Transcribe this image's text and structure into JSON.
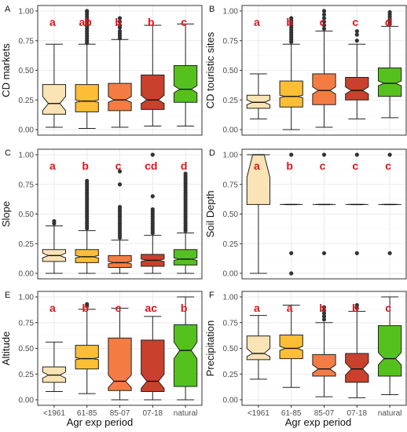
{
  "figure": {
    "xlabel": "Agr exp period",
    "categories": [
      "<1961",
      "61-85",
      "85-07",
      "07-18",
      "natural"
    ],
    "colors": [
      "#FAE3B4",
      "#FBBE35",
      "#F47C43",
      "#C9402C",
      "#55C11E"
    ],
    "letter_color": "#E0141B",
    "panel_border_color": "#333333",
    "grid_color": "#EBEBEB",
    "outlier_color": "#333333"
  },
  "chart_data": [
    {
      "type": "boxplot",
      "panel": "A",
      "ylabel": "CD markets",
      "ylim": [
        0,
        1
      ],
      "yticks": [
        "0.00",
        "0.25",
        "0.50",
        "0.75",
        "1.00"
      ],
      "grid": true,
      "letters": [
        "a",
        "ab",
        "b",
        "b",
        "c"
      ],
      "notched": true,
      "boxes": [
        {
          "whisker_low": 0.02,
          "q1": 0.13,
          "median": 0.22,
          "q3": 0.38,
          "whisker_high": 0.72,
          "notch": [
            0.16,
            0.28
          ],
          "outliers": []
        },
        {
          "whisker_low": 0.01,
          "q1": 0.15,
          "median": 0.24,
          "q3": 0.38,
          "whisker_high": 0.72,
          "notch": [
            0.23,
            0.25
          ],
          "outliers": [
            0.73,
            0.75,
            0.77,
            0.79,
            0.81,
            0.83,
            0.85,
            0.87,
            0.89,
            0.91,
            0.93,
            0.95,
            0.97,
            0.99,
            1.0
          ]
        },
        {
          "whisker_low": 0.02,
          "q1": 0.16,
          "median": 0.25,
          "q3": 0.39,
          "whisker_high": 0.76,
          "notch": [
            0.23,
            0.28
          ],
          "outliers": [
            0.77,
            0.79,
            0.81,
            0.83,
            0.86,
            0.88,
            0.91,
            0.94
          ]
        },
        {
          "whisker_low": 0.03,
          "q1": 0.17,
          "median": 0.25,
          "q3": 0.46,
          "whisker_high": 0.88,
          "notch": [
            0.22,
            0.29
          ],
          "outliers": []
        },
        {
          "whisker_low": 0.03,
          "q1": 0.23,
          "median": 0.34,
          "q3": 0.54,
          "whisker_high": 0.89,
          "notch": [
            0.31,
            0.37
          ],
          "outliers": []
        }
      ]
    },
    {
      "type": "boxplot",
      "panel": "B",
      "ylabel": "CD touristic sites",
      "ylim": [
        0,
        1
      ],
      "yticks": [
        "0.00",
        "0.25",
        "0.50",
        "0.75",
        "1.00"
      ],
      "grid": true,
      "letters": [
        "a",
        "b",
        "c",
        "c",
        "d"
      ],
      "notched": true,
      "boxes": [
        {
          "whisker_low": 0.09,
          "q1": 0.18,
          "median": 0.23,
          "q3": 0.29,
          "whisker_high": 0.47,
          "notch": [
            0.21,
            0.25
          ],
          "outliers": []
        },
        {
          "whisker_low": 0.0,
          "q1": 0.19,
          "median": 0.28,
          "q3": 0.41,
          "whisker_high": 0.72,
          "notch": [
            0.27,
            0.29
          ],
          "outliers": [
            0.74,
            0.76,
            0.78,
            0.8,
            0.82,
            0.84,
            0.86,
            0.88,
            0.9,
            0.92,
            0.94
          ]
        },
        {
          "whisker_low": 0.02,
          "q1": 0.21,
          "median": 0.33,
          "q3": 0.47,
          "whisker_high": 0.83,
          "notch": [
            0.3,
            0.36
          ],
          "outliers": [
            0.85,
            0.88,
            0.91,
            0.94,
            0.97,
            1.0
          ]
        },
        {
          "whisker_low": 0.09,
          "q1": 0.25,
          "median": 0.33,
          "q3": 0.44,
          "whisker_high": 0.72,
          "notch": [
            0.3,
            0.36
          ],
          "outliers": [
            0.75,
            0.8,
            0.83
          ]
        },
        {
          "whisker_low": 0.1,
          "q1": 0.28,
          "median": 0.39,
          "q3": 0.52,
          "whisker_high": 0.87,
          "notch": [
            0.37,
            0.41
          ],
          "outliers": [
            0.89,
            0.91,
            0.93,
            0.95,
            0.97,
            0.99
          ]
        }
      ]
    },
    {
      "type": "boxplot",
      "panel": "C",
      "ylabel": "Slope",
      "ylim": [
        0,
        1
      ],
      "yticks": [
        "0.00",
        "0.25",
        "0.50",
        "0.75",
        "1.00"
      ],
      "grid": true,
      "letters": [
        "a",
        "b",
        "c",
        "cd",
        "d"
      ],
      "notched": true,
      "boxes": [
        {
          "whisker_low": 0.0,
          "q1": 0.1,
          "median": 0.15,
          "q3": 0.2,
          "whisker_high": 0.4,
          "notch": [
            0.13,
            0.17
          ],
          "outliers": [
            0.42,
            0.44
          ]
        },
        {
          "whisker_low": 0.0,
          "q1": 0.09,
          "median": 0.14,
          "q3": 0.2,
          "whisker_high": 0.36,
          "notch": [
            0.13,
            0.15
          ],
          "outliers": [
            0.38,
            0.4,
            0.42,
            0.44,
            0.46,
            0.48,
            0.5,
            0.52,
            0.54,
            0.56,
            0.58,
            0.6,
            0.62,
            0.64,
            0.66,
            0.68,
            0.7,
            0.72,
            0.74,
            0.76,
            0.78
          ]
        },
        {
          "whisker_low": 0.0,
          "q1": 0.05,
          "median": 0.09,
          "q3": 0.15,
          "whisker_high": 0.28,
          "notch": [
            0.08,
            0.1
          ],
          "outliers": [
            0.3,
            0.32,
            0.34,
            0.36,
            0.38,
            0.4,
            0.42,
            0.44,
            0.46,
            0.48,
            0.5,
            0.52,
            0.54,
            0.56,
            0.75,
            0.86
          ]
        },
        {
          "whisker_low": 0.0,
          "q1": 0.06,
          "median": 0.11,
          "q3": 0.16,
          "whisker_high": 0.32,
          "notch": [
            0.1,
            0.12
          ],
          "outliers": [
            0.34,
            0.36,
            0.38,
            0.4,
            0.42,
            0.44,
            0.46,
            0.48,
            0.5,
            0.52,
            0.54,
            0.65,
            1.0
          ]
        },
        {
          "whisker_low": 0.0,
          "q1": 0.07,
          "median": 0.12,
          "q3": 0.2,
          "whisker_high": 0.34,
          "notch": [
            0.11,
            0.13
          ],
          "outliers": [
            0.36,
            0.38,
            0.4,
            0.42,
            0.44,
            0.46,
            0.48,
            0.5,
            0.52,
            0.54,
            0.56,
            0.58,
            0.6,
            0.62,
            0.64,
            0.66,
            0.68,
            0.7,
            0.72,
            0.74,
            0.76,
            0.78,
            0.8,
            0.82,
            0.84
          ]
        }
      ]
    },
    {
      "type": "boxplot",
      "panel": "D",
      "ylabel": "Soil Depth",
      "ylim": [
        0,
        1
      ],
      "yticks": [
        "0.00",
        "0.25",
        "0.50",
        "0.75",
        "1.00"
      ],
      "grid": true,
      "letters": [
        "a",
        "b",
        "c",
        "c",
        "c"
      ],
      "notched": true,
      "boxes": [
        {
          "whisker_low": 0.0,
          "q1": 0.58,
          "median": 1.0,
          "q3": 1.0,
          "whisker_high": 1.0,
          "notch": [
            0.81,
            1.0
          ],
          "outliers": []
        },
        {
          "whisker_low": 0.58,
          "q1": 0.58,
          "median": 0.58,
          "q3": 0.58,
          "whisker_high": 0.58,
          "notch": [
            0.58,
            0.58
          ],
          "outliers": [
            0.0,
            0.17,
            1.0
          ]
        },
        {
          "whisker_low": 0.58,
          "q1": 0.58,
          "median": 0.58,
          "q3": 0.58,
          "whisker_high": 0.58,
          "notch": [
            0.58,
            0.58
          ],
          "outliers": [
            0.17,
            1.0
          ]
        },
        {
          "whisker_low": 0.58,
          "q1": 0.58,
          "median": 0.58,
          "q3": 0.58,
          "whisker_high": 0.58,
          "notch": [
            0.58,
            0.58
          ],
          "outliers": [
            0.17,
            1.0
          ]
        },
        {
          "whisker_low": 0.58,
          "q1": 0.58,
          "median": 0.58,
          "q3": 0.58,
          "whisker_high": 0.58,
          "notch": [
            0.58,
            0.58
          ],
          "outliers": [
            0.17,
            1.0
          ]
        }
      ]
    },
    {
      "type": "boxplot",
      "panel": "E",
      "ylabel": "Altitude",
      "ylim": [
        0,
        1
      ],
      "yticks": [
        "0.00",
        "0.25",
        "0.50",
        "0.75",
        "1.00"
      ],
      "grid": true,
      "letters": [
        "a",
        "b",
        "c",
        "ac",
        "b"
      ],
      "notched": true,
      "boxes": [
        {
          "whisker_low": 0.08,
          "q1": 0.17,
          "median": 0.24,
          "q3": 0.32,
          "whisker_high": 0.56,
          "notch": [
            0.21,
            0.27
          ],
          "outliers": []
        },
        {
          "whisker_low": 0.06,
          "q1": 0.3,
          "median": 0.4,
          "q3": 0.53,
          "whisker_high": 0.88,
          "notch": [
            0.39,
            0.41
          ],
          "outliers": [
            0.91,
            0.93
          ]
        },
        {
          "whisker_low": 0.0,
          "q1": 0.09,
          "median": 0.18,
          "q3": 0.6,
          "whisker_high": 0.89,
          "notch": [
            0.12,
            0.24
          ],
          "outliers": []
        },
        {
          "whisker_low": 0.0,
          "q1": 0.08,
          "median": 0.18,
          "q3": 0.58,
          "whisker_high": 0.81,
          "notch": [
            0.11,
            0.25
          ],
          "outliers": []
        },
        {
          "whisker_low": 0.0,
          "q1": 0.13,
          "median": 0.48,
          "q3": 0.73,
          "whisker_high": 1.0,
          "notch": [
            0.4,
            0.56
          ],
          "outliers": []
        }
      ]
    },
    {
      "type": "boxplot",
      "panel": "F",
      "ylabel": "Precipitation",
      "ylim": [
        0,
        1
      ],
      "yticks": [
        "0.00",
        "0.25",
        "0.50",
        "0.75",
        "1.00"
      ],
      "grid": true,
      "letters": [
        "a",
        "a",
        "b",
        "b",
        "c"
      ],
      "notched": true,
      "boxes": [
        {
          "whisker_low": 0.2,
          "q1": 0.39,
          "median": 0.45,
          "q3": 0.62,
          "whisker_high": 0.82,
          "notch": [
            0.42,
            0.5
          ],
          "outliers": []
        },
        {
          "whisker_low": 0.12,
          "q1": 0.4,
          "median": 0.5,
          "q3": 0.63,
          "whisker_high": 0.92,
          "notch": [
            0.48,
            0.52
          ],
          "outliers": []
        },
        {
          "whisker_low": 0.03,
          "q1": 0.23,
          "median": 0.3,
          "q3": 0.44,
          "whisker_high": 0.75,
          "notch": [
            0.26,
            0.34
          ],
          "outliers": [
            0.78,
            0.81,
            0.84,
            0.87,
            0.9
          ]
        },
        {
          "whisker_low": 0.02,
          "q1": 0.17,
          "median": 0.3,
          "q3": 0.45,
          "whisker_high": 0.86,
          "notch": [
            0.24,
            0.36
          ],
          "outliers": [
            0.89,
            0.92
          ]
        },
        {
          "whisker_low": 0.05,
          "q1": 0.23,
          "median": 0.4,
          "q3": 0.72,
          "whisker_high": 1.0,
          "notch": [
            0.34,
            0.46
          ],
          "outliers": []
        }
      ]
    }
  ]
}
